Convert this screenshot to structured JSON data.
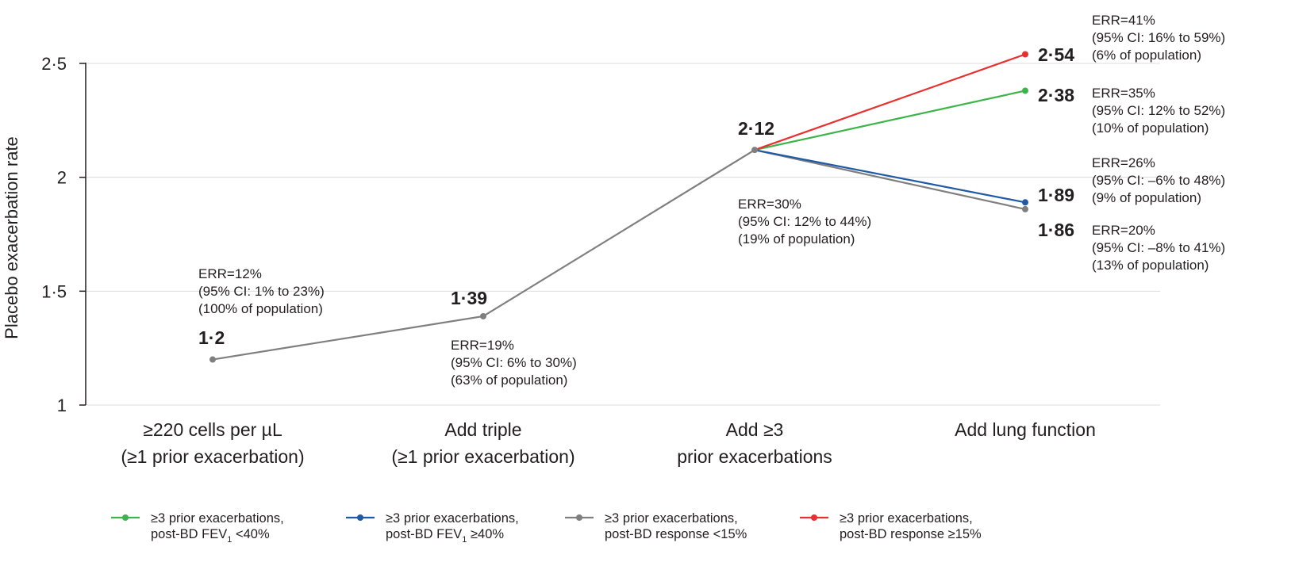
{
  "chart_data": {
    "type": "line",
    "ylabel": "Placebo exacerbation rate",
    "ylim": [
      1,
      2.5
    ],
    "yticks": [
      "1",
      "1·5",
      "2",
      "2·5"
    ],
    "grid": true,
    "legend_position": "bottom",
    "categories": [
      {
        "line1": "≥220 cells per µL",
        "line2": "(≥1 prior exacerbation)"
      },
      {
        "line1": "Add triple",
        "line2": "(≥1 prior exacerbation)"
      },
      {
        "line1": "Add ≥3",
        "line2": "prior exacerbations"
      },
      {
        "line1": "Add lung function",
        "line2": ""
      }
    ],
    "common_path": {
      "values": [
        1.2,
        1.39,
        2.12
      ],
      "value_labels": [
        "1·2",
        "1·39",
        "2·12"
      ],
      "annotations": [
        {
          "line1": "ERR=12%",
          "line2": "(95% CI: 1% to 23%)",
          "line3": "(100% of population)"
        },
        {
          "line1": "ERR=19%",
          "line2": "(95% CI: 6% to 30%)",
          "line3": "(63% of population)"
        },
        {
          "line1": "ERR=30%",
          "line2": "(95% CI: 12% to 44%)",
          "line3": "(19% of population)"
        }
      ]
    },
    "series": [
      {
        "name_line1": "≥3 prior exacerbations,",
        "name_line2_a": "post-BD FEV",
        "name_line2_sub": "1",
        "name_line2_b": " <40%",
        "color": "#3cb44a",
        "end_value": 2.38,
        "end_label": "2·38",
        "annotation": {
          "line1": "ERR=35%",
          "line2": "(95% CI: 12% to 52%)",
          "line3": "(10% of population)"
        }
      },
      {
        "name_line1": "≥3 prior exacerbations,",
        "name_line2_a": "post-BD FEV",
        "name_line2_sub": "1",
        "name_line2_b": " ≥40%",
        "color": "#1f5aa6",
        "end_value": 1.89,
        "end_label": "1·89",
        "annotation": {
          "line1": "ERR=26%",
          "line2": "(95% CI: –6% to 48%)",
          "line3": "(9% of population)"
        }
      },
      {
        "name_line1": "≥3 prior exacerbations,",
        "name_line2_a": "post-BD response <15%",
        "name_line2_sub": "",
        "name_line2_b": "",
        "color": "#7f7f7f",
        "end_value": 1.86,
        "end_label": "1·86",
        "annotation": {
          "line1": "ERR=20%",
          "line2": "(95% CI: –8% to 41%)",
          "line3": "(13% of population)"
        }
      },
      {
        "name_line1": "≥3 prior exacerbations,",
        "name_line2_a": "post-BD response ≥15%",
        "name_line2_sub": "",
        "name_line2_b": "",
        "color": "#e8312f",
        "end_value": 2.54,
        "end_label": "2·54",
        "annotation": {
          "line1": "ERR=41%",
          "line2": "(95% CI: 16% to 59%)",
          "line3": "(6% of population)"
        }
      }
    ]
  }
}
